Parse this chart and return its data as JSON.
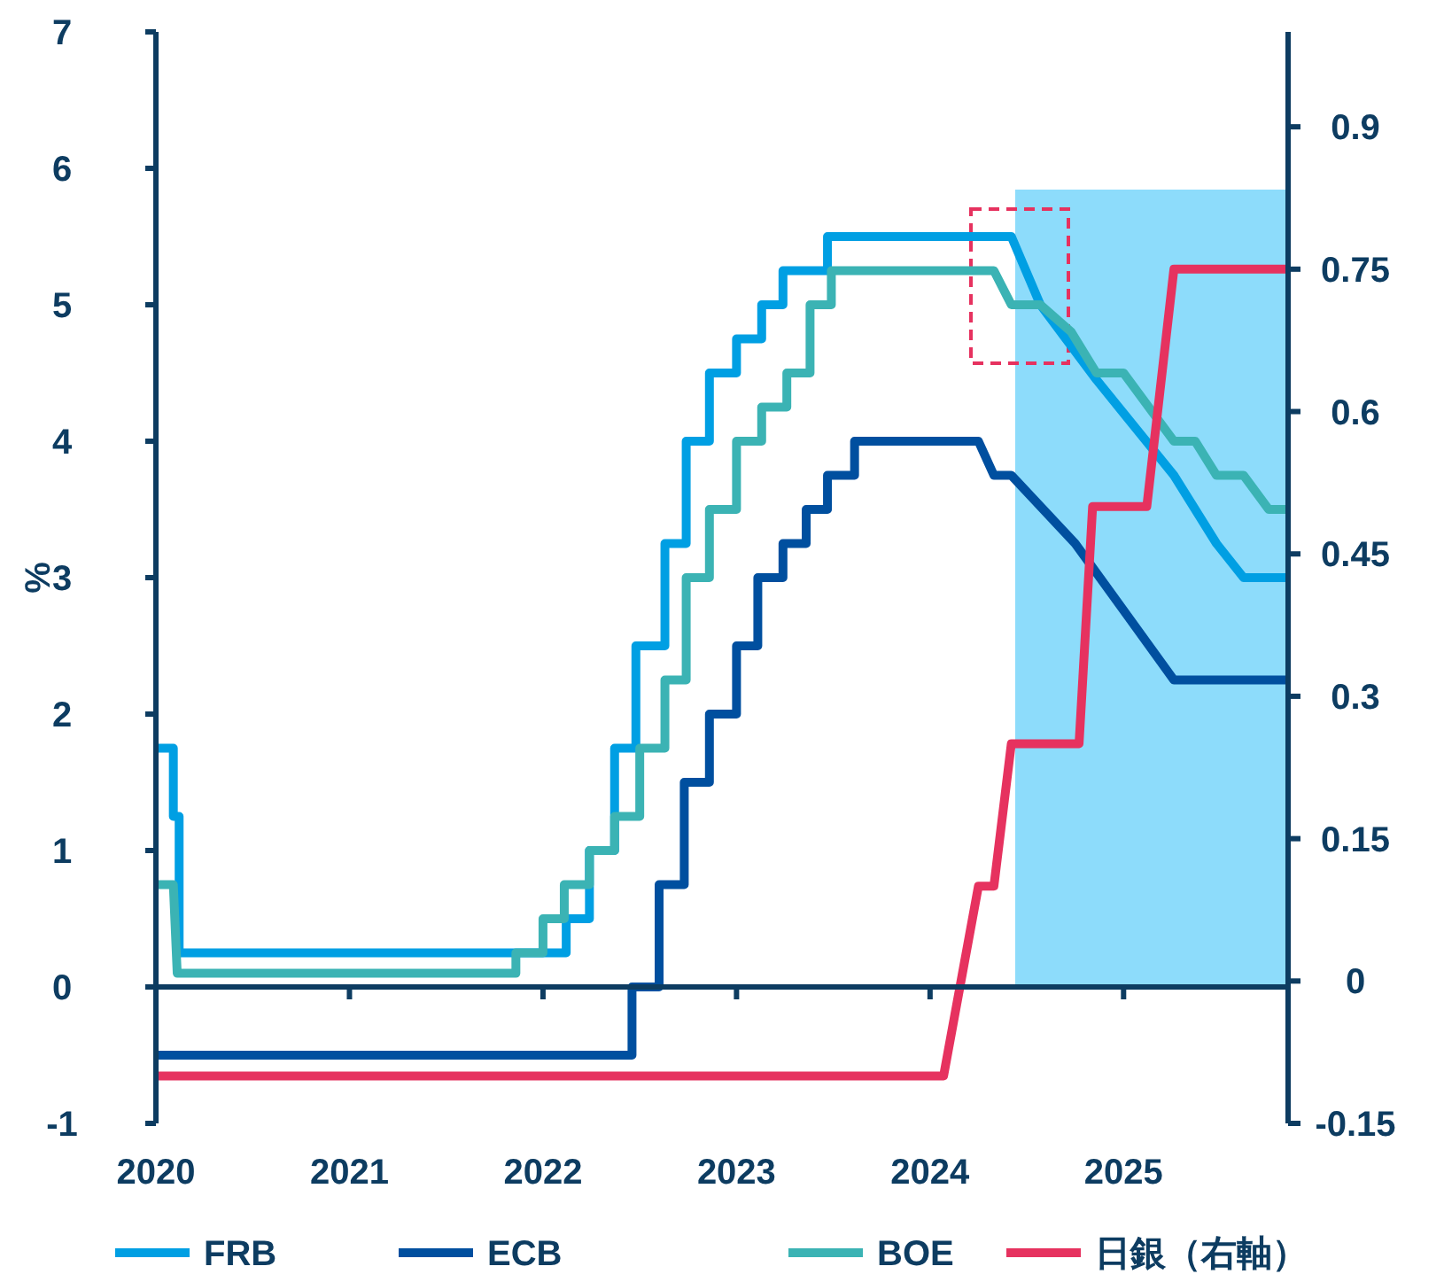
{
  "chart_data": {
    "type": "line",
    "ylabel": "%",
    "xlim": [
      2020,
      2025.85
    ],
    "xticks": [
      2020,
      2021,
      2022,
      2023,
      2024,
      2025
    ],
    "ylim": [
      -1,
      7
    ],
    "yticks": [
      -1,
      0,
      1,
      2,
      3,
      4,
      5,
      6,
      7
    ],
    "y2lim": [
      -0.15,
      1.0
    ],
    "y2ticks": [
      -0.15,
      0,
      0.15,
      0.3,
      0.45,
      0.6,
      0.75,
      0.9
    ],
    "grid": false,
    "legend": "bottom",
    "line_style": "solid",
    "marker": "none",
    "bands": [
      {
        "axis": "x",
        "from": 2024.44,
        "to": 2025.85,
        "color": "#8ddcfb"
      }
    ],
    "series": [
      {
        "name": "FRB",
        "color": "#009fe3",
        "x": [
          2020,
          2020.09,
          2020.09,
          2020.12,
          2020.12,
          2022.12,
          2022.12,
          2022.24,
          2022.24,
          2022.37,
          2022.37,
          2022.48,
          2022.48,
          2022.63,
          2022.63,
          2022.74,
          2022.74,
          2022.86,
          2022.86,
          2023.0,
          2023.0,
          2023.13,
          2023.13,
          2023.24,
          2023.24,
          2023.47,
          2023.47,
          2024.42,
          2024.57,
          2024.86,
          2025.26,
          2025.48,
          2025.62,
          2025.85
        ],
        "values": [
          1.75,
          1.75,
          1.25,
          1.25,
          0.25,
          0.25,
          0.5,
          0.5,
          1.0,
          1.0,
          1.75,
          1.75,
          2.5,
          2.5,
          3.25,
          3.25,
          4.0,
          4.0,
          4.5,
          4.5,
          4.75,
          4.75,
          5.0,
          5.0,
          5.25,
          5.25,
          5.5,
          5.5,
          5.0,
          4.45,
          3.75,
          3.25,
          3.0,
          3.0
        ]
      },
      {
        "name": "ECB",
        "color": "#004f9f",
        "x": [
          2020,
          2022.46,
          2022.46,
          2022.6,
          2022.6,
          2022.73,
          2022.73,
          2022.86,
          2022.86,
          2023.0,
          2023.0,
          2023.11,
          2023.11,
          2023.24,
          2023.24,
          2023.36,
          2023.36,
          2023.47,
          2023.47,
          2023.61,
          2023.61,
          2024.25,
          2024.33,
          2024.42,
          2024.75,
          2025.26,
          2025.85
        ],
        "values": [
          -0.5,
          -0.5,
          0,
          0,
          0.75,
          0.75,
          1.5,
          1.5,
          2.0,
          2.0,
          2.5,
          2.5,
          3.0,
          3.0,
          3.25,
          3.25,
          3.5,
          3.5,
          3.75,
          3.75,
          4.0,
          4.0,
          3.75,
          3.75,
          3.25,
          2.25,
          2.25
        ]
      },
      {
        "name": "BOE",
        "color": "#3bb3b4",
        "x": [
          2020,
          2020.09,
          2020.11,
          2021.86,
          2021.86,
          2022.0,
          2022.0,
          2022.11,
          2022.11,
          2022.24,
          2022.24,
          2022.37,
          2022.37,
          2022.5,
          2022.5,
          2022.63,
          2022.63,
          2022.74,
          2022.74,
          2022.86,
          2022.86,
          2023.0,
          2023.0,
          2023.13,
          2023.13,
          2023.26,
          2023.26,
          2023.38,
          2023.38,
          2023.49,
          2023.49,
          2024.33,
          2024.42,
          2024.57,
          2024.73,
          2024.86,
          2025.0,
          2025.26,
          2025.37,
          2025.48,
          2025.62,
          2025.75,
          2025.85
        ],
        "values": [
          0.75,
          0.75,
          0.1,
          0.1,
          0.25,
          0.25,
          0.5,
          0.5,
          0.75,
          0.75,
          1.0,
          1.0,
          1.25,
          1.25,
          1.75,
          1.75,
          2.25,
          2.25,
          3.0,
          3.0,
          3.5,
          3.5,
          4.0,
          4.0,
          4.25,
          4.25,
          4.5,
          4.5,
          5.0,
          5.0,
          5.25,
          5.25,
          5.0,
          5.0,
          4.8,
          4.5,
          4.5,
          4.0,
          4.0,
          3.75,
          3.75,
          3.5,
          3.5
        ]
      },
      {
        "name": "日銀（右軸）",
        "color": "#e6325f",
        "axis": "y2",
        "x": [
          2020,
          2024.07,
          2024.25,
          2024.33,
          2024.42,
          2024.77,
          2024.84,
          2025.12,
          2025.26,
          2025.85
        ],
        "values": [
          -0.1,
          -0.1,
          0.1,
          0.1,
          0.25,
          0.25,
          0.5,
          0.5,
          0.75,
          0.75
        ]
      }
    ]
  }
}
